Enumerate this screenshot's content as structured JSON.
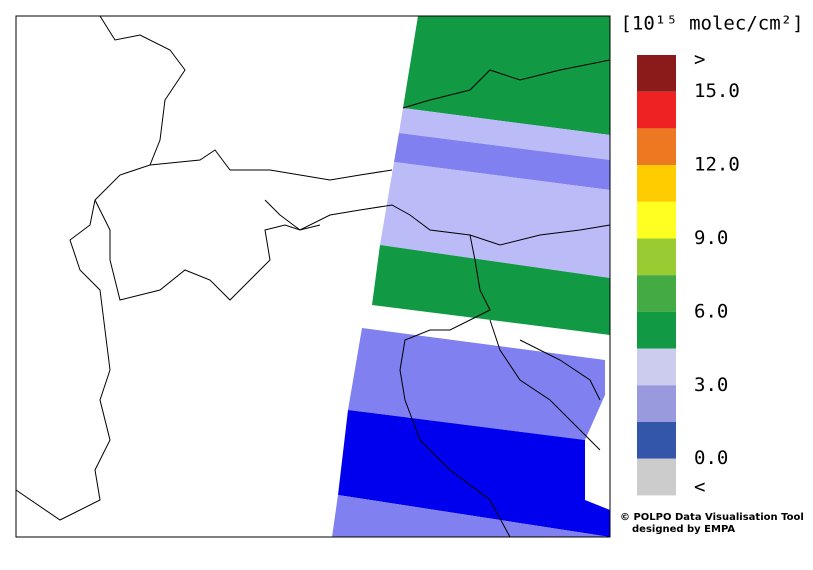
{
  "legend": {
    "title": "[10¹⁵ molec/cm²]",
    "colors": [
      "#8b1a1a",
      "#ee2222",
      "#ee7722",
      "#ffcc00",
      "#ffff22",
      "#99cc33",
      "#44aa44",
      "#119944",
      "#ccccee",
      "#9999dd",
      "#3355aa",
      "#cccccc"
    ],
    "labels": [
      ">",
      "15.0",
      "12.0",
      "9.0",
      "6.0",
      "3.0",
      "0.0",
      "<"
    ]
  },
  "credit": {
    "line1": "© POLPO Data Visualisation Tool",
    "line2": "designed by EMPA"
  }
}
